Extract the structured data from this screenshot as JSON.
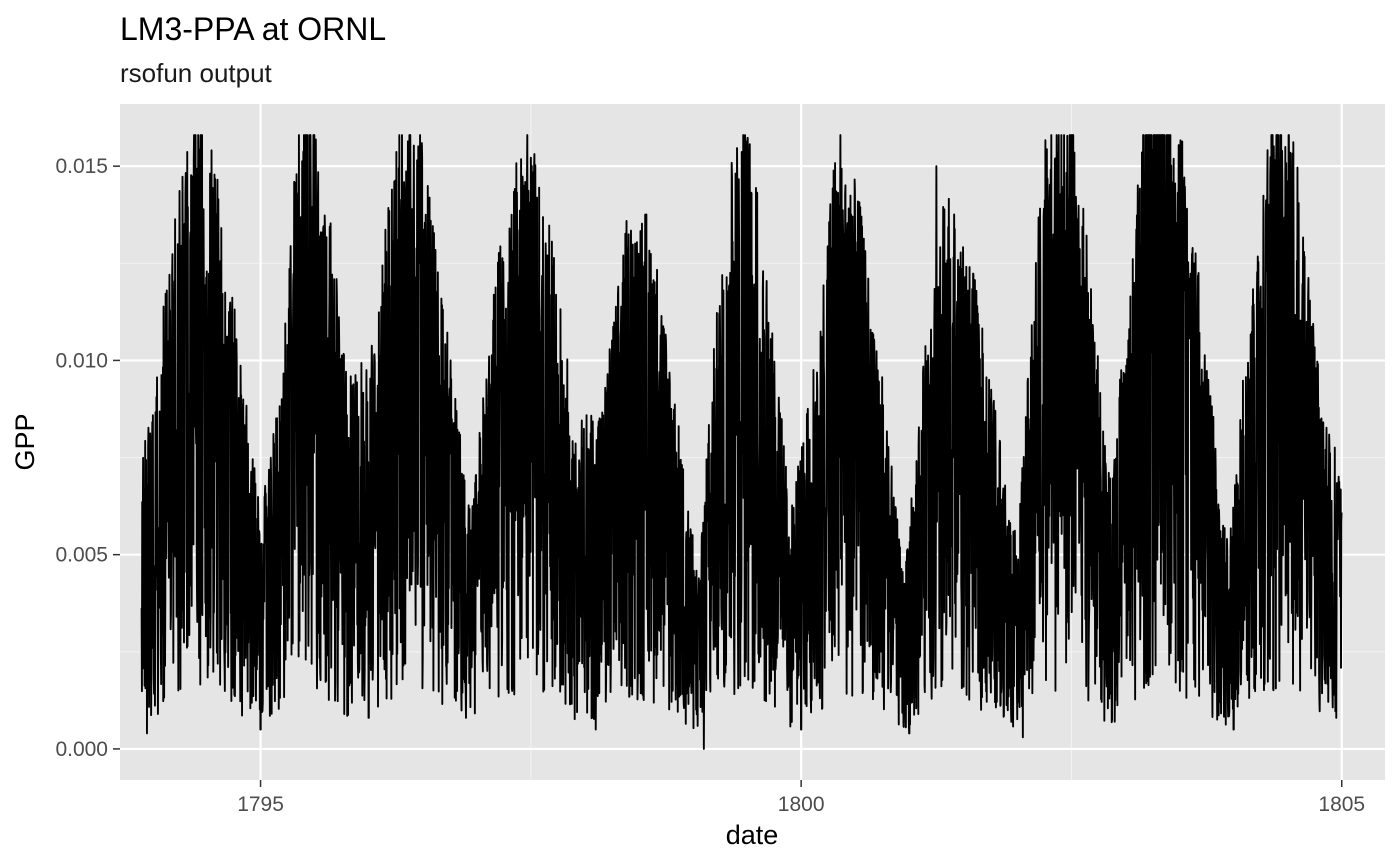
{
  "chart_data": {
    "type": "line",
    "title": "LM3-PPA at ORNL",
    "subtitle": "rsofun output",
    "xlabel": "date",
    "ylabel": "GPP",
    "xlim": [
      1793.7,
      1805.4
    ],
    "ylim": [
      -0.0008,
      0.0166
    ],
    "x_ticks": [
      1795,
      1800,
      1805
    ],
    "x_tick_labels": [
      "1795",
      "1800",
      "1805"
    ],
    "y_ticks": [
      0.0,
      0.005,
      0.01,
      0.015
    ],
    "y_tick_labels": [
      "0.000",
      "0.005",
      "0.010",
      "0.015"
    ],
    "grid": true,
    "background": "#e5e5e5",
    "line_color": "#000000",
    "series": [
      {
        "x_start": 1793.9,
        "x_end": 1805.0,
        "resolution": "daily",
        "seasonal_profile": [
          {
            "x": 1793.9,
            "y": 0.0045
          },
          {
            "x": 1794.0,
            "y": 0.005
          },
          {
            "x": 1794.2,
            "y": 0.008
          },
          {
            "x": 1794.4,
            "y": 0.01
          },
          {
            "x": 1794.6,
            "y": 0.0085
          },
          {
            "x": 1794.8,
            "y": 0.006
          },
          {
            "x": 1795.0,
            "y": 0.0035
          },
          {
            "x": 1795.2,
            "y": 0.0055
          },
          {
            "x": 1795.4,
            "y": 0.011
          },
          {
            "x": 1795.6,
            "y": 0.0085
          },
          {
            "x": 1795.8,
            "y": 0.0055
          },
          {
            "x": 1796.05,
            "y": 0.006
          },
          {
            "x": 1796.3,
            "y": 0.01
          },
          {
            "x": 1796.5,
            "y": 0.009
          },
          {
            "x": 1796.75,
            "y": 0.006
          },
          {
            "x": 1796.95,
            "y": 0.0035
          },
          {
            "x": 1797.2,
            "y": 0.0075
          },
          {
            "x": 1797.45,
            "y": 0.0095
          },
          {
            "x": 1797.7,
            "y": 0.0075
          },
          {
            "x": 1797.9,
            "y": 0.005
          },
          {
            "x": 1798.15,
            "y": 0.005
          },
          {
            "x": 1798.4,
            "y": 0.008
          },
          {
            "x": 1798.6,
            "y": 0.008
          },
          {
            "x": 1798.85,
            "y": 0.005
          },
          {
            "x": 1799.05,
            "y": 0.0025
          },
          {
            "x": 1799.3,
            "y": 0.0085
          },
          {
            "x": 1799.5,
            "y": 0.0095
          },
          {
            "x": 1799.7,
            "y": 0.007
          },
          {
            "x": 1799.9,
            "y": 0.0035
          },
          {
            "x": 1800.15,
            "y": 0.006
          },
          {
            "x": 1800.35,
            "y": 0.0095
          },
          {
            "x": 1800.55,
            "y": 0.008
          },
          {
            "x": 1800.75,
            "y": 0.0055
          },
          {
            "x": 1800.95,
            "y": 0.0025
          },
          {
            "x": 1801.15,
            "y": 0.006
          },
          {
            "x": 1801.35,
            "y": 0.0085
          },
          {
            "x": 1801.55,
            "y": 0.0075
          },
          {
            "x": 1801.8,
            "y": 0.005
          },
          {
            "x": 1802.0,
            "y": 0.003
          },
          {
            "x": 1802.25,
            "y": 0.0095
          },
          {
            "x": 1802.45,
            "y": 0.01
          },
          {
            "x": 1802.65,
            "y": 0.0075
          },
          {
            "x": 1802.85,
            "y": 0.004
          },
          {
            "x": 1803.05,
            "y": 0.007
          },
          {
            "x": 1803.3,
            "y": 0.0125
          },
          {
            "x": 1803.5,
            "y": 0.0095
          },
          {
            "x": 1803.75,
            "y": 0.006
          },
          {
            "x": 1803.95,
            "y": 0.003
          },
          {
            "x": 1804.2,
            "y": 0.0075
          },
          {
            "x": 1804.4,
            "y": 0.0105
          },
          {
            "x": 1804.6,
            "y": 0.0085
          },
          {
            "x": 1804.8,
            "y": 0.0055
          },
          {
            "x": 1805.0,
            "y": 0.004
          }
        ],
        "peaks": [
          {
            "x": 1794.35,
            "y": 0.0131
          },
          {
            "x": 1795.35,
            "y": 0.0143
          },
          {
            "x": 1796.3,
            "y": 0.0135
          },
          {
            "x": 1797.45,
            "y": 0.0126
          },
          {
            "x": 1798.35,
            "y": 0.012
          },
          {
            "x": 1799.4,
            "y": 0.013
          },
          {
            "x": 1800.4,
            "y": 0.0131
          },
          {
            "x": 1801.25,
            "y": 0.015
          },
          {
            "x": 1802.35,
            "y": 0.0152
          },
          {
            "x": 1803.3,
            "y": 0.0158
          },
          {
            "x": 1804.45,
            "y": 0.0146
          }
        ],
        "troughs": [
          {
            "x": 1793.95,
            "y": 0.0004
          },
          {
            "x": 1795.0,
            "y": 0.0005
          },
          {
            "x": 1796.0,
            "y": 0.0008
          },
          {
            "x": 1796.9,
            "y": 0.0008
          },
          {
            "x": 1798.1,
            "y": 0.0005
          },
          {
            "x": 1799.1,
            "y": 0.0
          },
          {
            "x": 1800.0,
            "y": 0.0005
          },
          {
            "x": 1801.0,
            "y": 0.0004
          },
          {
            "x": 1802.05,
            "y": 0.0003
          },
          {
            "x": 1802.9,
            "y": 0.0007
          },
          {
            "x": 1804.0,
            "y": 0.0005
          },
          {
            "x": 1804.95,
            "y": 0.0008
          }
        ]
      }
    ]
  }
}
